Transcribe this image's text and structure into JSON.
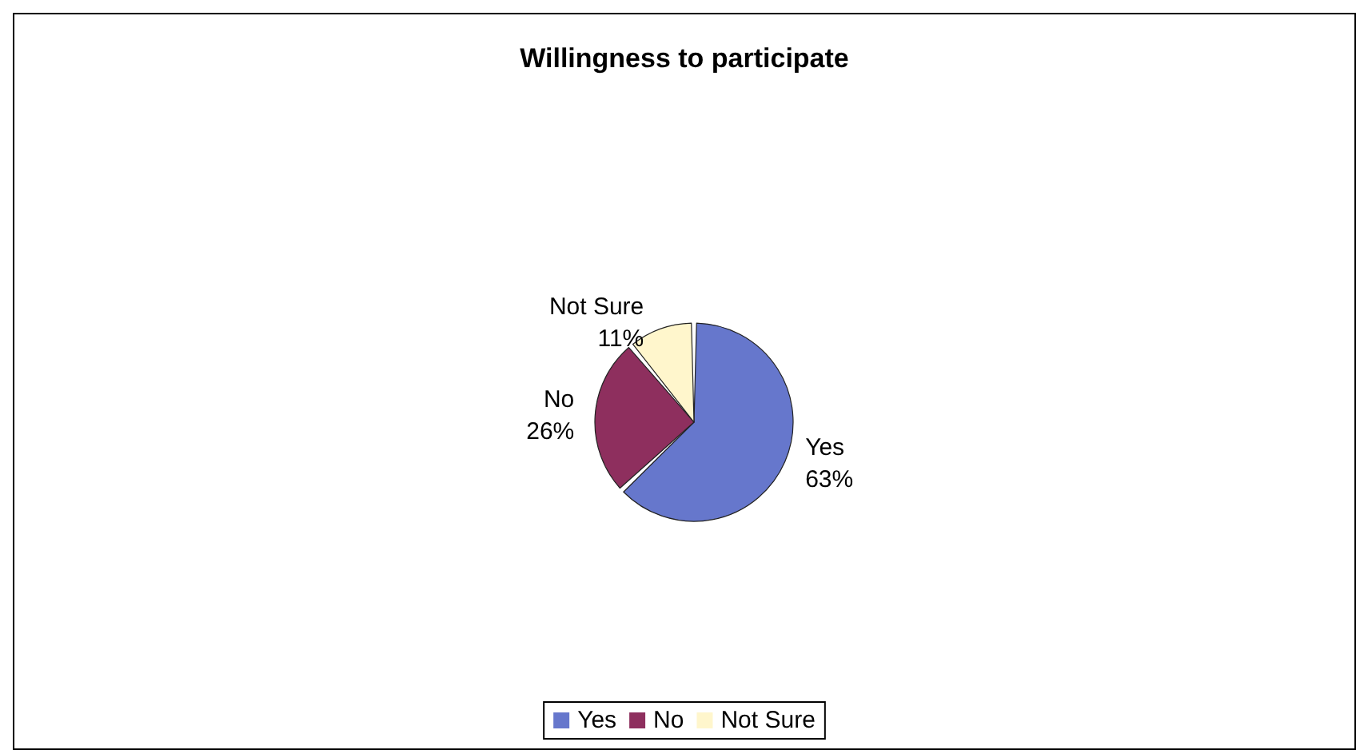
{
  "chart_data": {
    "type": "pie",
    "title": "Willingness to participate",
    "categories": [
      "Yes",
      "No",
      "Not Sure"
    ],
    "values": [
      63,
      26,
      11
    ],
    "value_labels": [
      "63%",
      "26%",
      "11%"
    ],
    "colors": [
      "#6677cc",
      "#8e2f5e",
      "#fff6cc"
    ],
    "legend": "bottom"
  }
}
